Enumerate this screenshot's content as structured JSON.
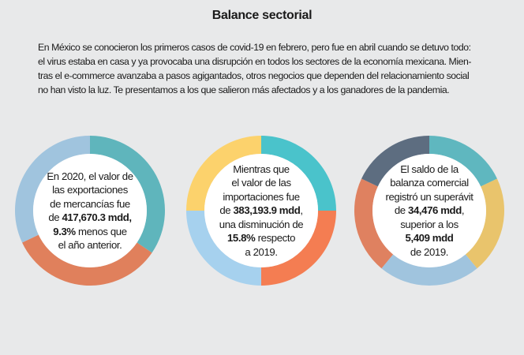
{
  "title": "Balance sectorial",
  "intro_lines": [
    "En México se conocieron los primeros casos de covid-19 en febrero, pero fue en abril cuando se detuvo todo:",
    "el virus estaba en casa y ya provocaba una disrupción en todos los sectores de la economía mexicana. Mien-",
    "tras el e-commerce avanzaba a pasos agigantados, otros negocios que dependen del relacionamiento social",
    "no han visto la luz. Te presentamos a los que salieron más afectados y a los ganadores de la pandemia."
  ],
  "circles": [
    {
      "id": "exportaciones",
      "segments": [
        {
          "share": 0.345,
          "color": "#5fb5bc"
        },
        {
          "share": 0.335,
          "color": "#e0805c"
        },
        {
          "share": 0.32,
          "color": "#a0c4de"
        }
      ],
      "lines": [
        [
          {
            "t": "En 2020, el valor de",
            "b": false
          }
        ],
        [
          {
            "t": "las exportaciones",
            "b": false
          }
        ],
        [
          {
            "t": "de mercancías fue",
            "b": false
          }
        ],
        [
          {
            "t": "de ",
            "b": false
          },
          {
            "t": "417,670.3 mdd,",
            "b": true
          }
        ],
        [
          {
            "t": "9.3%",
            "b": true
          },
          {
            "t": " menos que",
            "b": false
          }
        ],
        [
          {
            "t": "el año anterior.",
            "b": false
          }
        ]
      ]
    },
    {
      "id": "importaciones",
      "segments": [
        {
          "share": 0.25,
          "color": "#4ac3cb"
        },
        {
          "share": 0.25,
          "color": "#f47d52"
        },
        {
          "share": 0.25,
          "color": "#a6d1ee"
        },
        {
          "share": 0.25,
          "color": "#fcd26c"
        }
      ],
      "lines": [
        [
          {
            "t": "Mientras que",
            "b": false
          }
        ],
        [
          {
            "t": "el valor de las",
            "b": false
          }
        ],
        [
          {
            "t": "importaciones fue",
            "b": false
          }
        ],
        [
          {
            "t": "de ",
            "b": false
          },
          {
            "t": "383,193.9 mdd",
            "b": true
          },
          {
            "t": ",",
            "b": false
          }
        ],
        [
          {
            "t": "una disminución de",
            "b": false
          }
        ],
        [
          {
            "t": "15.8%",
            "b": true
          },
          {
            "t": " respecto",
            "b": false
          }
        ],
        [
          {
            "t": "a 2019.",
            "b": false
          }
        ]
      ]
    },
    {
      "id": "balanza",
      "segments": [
        {
          "share": 0.18,
          "color": "#5fb7bf"
        },
        {
          "share": 0.21,
          "color": "#e9c46c"
        },
        {
          "share": 0.22,
          "color": "#a0c4de"
        },
        {
          "share": 0.21,
          "color": "#df8160"
        },
        {
          "share": 0.18,
          "color": "#5d6d80"
        }
      ],
      "lines": [
        [
          {
            "t": "El saldo de la",
            "b": false
          }
        ],
        [
          {
            "t": "balanza comercial",
            "b": false
          }
        ],
        [
          {
            "t": "registró un superávit",
            "b": false
          }
        ],
        [
          {
            "t": "de ",
            "b": false
          },
          {
            "t": "34,476 mdd",
            "b": true
          },
          {
            "t": ",",
            "b": false
          }
        ],
        [
          {
            "t": "superior a los",
            "b": false
          }
        ],
        [
          {
            "t": "5,409 mdd",
            "b": true
          }
        ],
        [
          {
            "t": "de 2019.",
            "b": false
          }
        ]
      ]
    }
  ]
}
